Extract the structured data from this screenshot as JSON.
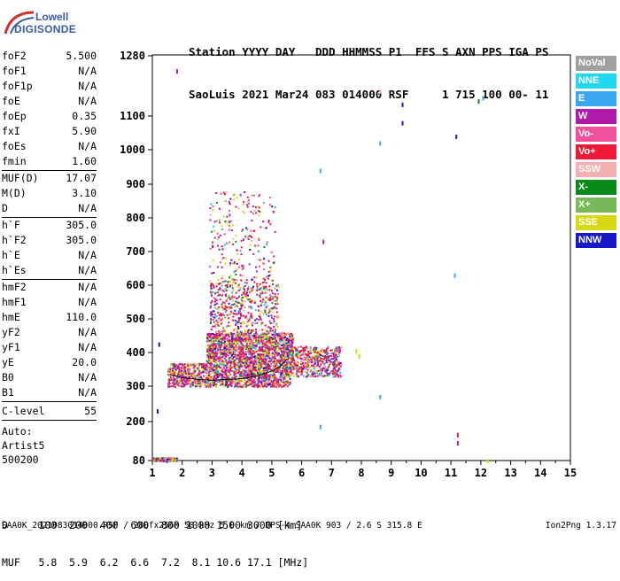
{
  "logo": {
    "top": "Lowell",
    "bottom": "DIGISONDE"
  },
  "header": {
    "line1": "Station YYYY DAY   DDD HHMMSS P1  FFS S AXN PPS IGA PS",
    "line2": "SaoLuis 2021 Mar24 083 014000 RSF     1 715 100 00- 11"
  },
  "params_groups": [
    [
      {
        "label": "foF2",
        "value": "5.500"
      },
      {
        "label": "foF1",
        "value": "N/A"
      },
      {
        "label": "foF1p",
        "value": "N/A"
      },
      {
        "label": "foE",
        "value": "N/A"
      },
      {
        "label": "foEp",
        "value": "0.35"
      },
      {
        "label": "fxI",
        "value": "5.90"
      },
      {
        "label": "foEs",
        "value": "N/A"
      },
      {
        "label": "fmin",
        "value": "1.60"
      }
    ],
    [
      {
        "label": "MUF(D)",
        "value": "17.07"
      },
      {
        "label": "M(D)",
        "value": "3.10"
      },
      {
        "label": "D",
        "value": "N/A"
      }
    ],
    [
      {
        "label": "h`F",
        "value": "305.0"
      },
      {
        "label": "h`F2",
        "value": "305.0"
      },
      {
        "label": "h`E",
        "value": "N/A"
      },
      {
        "label": "h`Es",
        "value": "N/A"
      }
    ],
    [
      {
        "label": "hmF2",
        "value": "N/A"
      },
      {
        "label": "hmF1",
        "value": "N/A"
      },
      {
        "label": "hmE",
        "value": "110.0"
      },
      {
        "label": "yF2",
        "value": "N/A"
      },
      {
        "label": "yF1",
        "value": "N/A"
      },
      {
        "label": "yE",
        "value": "20.0"
      },
      {
        "label": "B0",
        "value": "N/A"
      },
      {
        "label": "B1",
        "value": "N/A"
      }
    ]
  ],
  "c_level": {
    "label": "C-level",
    "value": "55"
  },
  "auto": {
    "line1": "Auto:",
    "line2": "Artist5",
    "line3": "500200"
  },
  "legend": [
    {
      "label": "NoVal",
      "color": "#a0a0a0"
    },
    {
      "label": "NNE",
      "color": "#22d8f0"
    },
    {
      "label": "E",
      "color": "#3aa8f0"
    },
    {
      "label": "W",
      "color": "#b01aa8"
    },
    {
      "label": "Vo-",
      "color": "#f0509c"
    },
    {
      "label": "Vo+",
      "color": "#f01838"
    },
    {
      "label": "SSW",
      "color": "#f4b0b0"
    },
    {
      "label": "X-",
      "color": "#088a18"
    },
    {
      "label": "X+",
      "color": "#78b858"
    },
    {
      "label": "SSE",
      "color": "#d8d810"
    },
    {
      "label": "NNW",
      "color": "#1818c8"
    }
  ],
  "chart_data": {
    "type": "scatter",
    "x_ticks": [
      "1",
      "2",
      "3",
      "4",
      "5",
      "6",
      "7",
      "8",
      "9",
      "10",
      "11",
      "12",
      "13",
      "14",
      "15"
    ],
    "y_ticks": [
      "80",
      "200",
      "300",
      "400",
      "500",
      "600",
      "700",
      "800",
      "900",
      "1000",
      "1100",
      "1280"
    ],
    "xlim": [
      1,
      15
    ],
    "ylim": [
      80,
      1280
    ],
    "y_scale": "range-compressed (log-like)",
    "grid": false,
    "trace": {
      "name": "",
      "x": [
        1.6,
        1.8,
        2.0,
        2.5,
        3.0,
        3.5,
        4.0,
        4.5,
        5.0,
        5.3,
        5.5
      ],
      "y": [
        335,
        330,
        325,
        320,
        318,
        320,
        322,
        330,
        345,
        360,
        380
      ]
    },
    "echo_layers": [
      {
        "x_range": [
          1.5,
          5.6
        ],
        "h_range": [
          300,
          370
        ],
        "density": "high"
      },
      {
        "x_range": [
          2.8,
          5.7
        ],
        "h_range": [
          370,
          460
        ],
        "density": "high"
      },
      {
        "x_range": [
          2.9,
          5.2
        ],
        "h_range": [
          460,
          620
        ],
        "density": "medium"
      },
      {
        "x_range": [
          2.9,
          5.1
        ],
        "h_range": [
          620,
          880
        ],
        "density": "low"
      },
      {
        "x_range": [
          5.6,
          7.3
        ],
        "h_range": [
          330,
          420
        ],
        "density": "medium"
      },
      {
        "x_range": [
          1.0,
          1.8
        ],
        "h_range": [
          80,
          90
        ],
        "density": "low"
      }
    ]
  },
  "bottom": {
    "d_line": "D     100  200  400  600  800 1000 1500 3000 [km]",
    "muf_line": "MUF   5.8  5.9  6.2  6.6  7.2  8.1 10.6 17.1 [MHz]"
  },
  "footer": {
    "file": "SAA0K_2021083014000.RSF / 280fx256h 50 kHz 5.0 km / DPS-4 SAA0K 903 / 2.6 S 315.8 E",
    "version": "Ion2Png 1.3.17"
  }
}
